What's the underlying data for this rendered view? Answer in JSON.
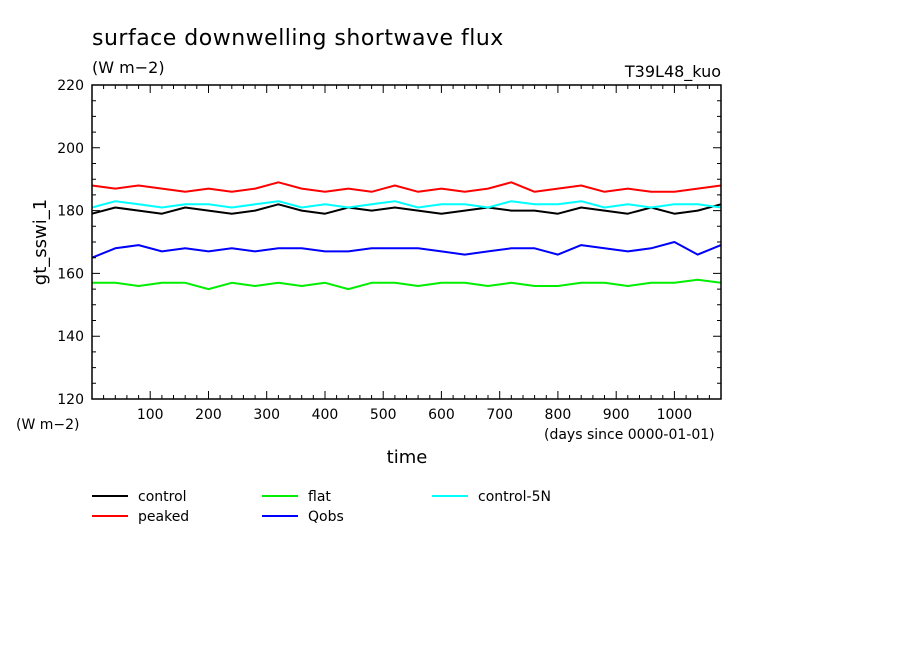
{
  "chart_data": {
    "type": "line",
    "title": "surface downwelling shortwave flux",
    "units_label": "(W m−2)",
    "experiment_label": "T39L48_kuo",
    "ylabel": "gt_sswi_1",
    "y_units": "(W m−2)",
    "xlabel": "time",
    "x_units": "(days since 0000-01-01)",
    "xlim": [
      0,
      1080
    ],
    "ylim": [
      120,
      220
    ],
    "x_ticks": [
      100,
      200,
      300,
      400,
      500,
      600,
      700,
      800,
      900,
      1000
    ],
    "y_ticks": [
      120,
      140,
      160,
      180,
      200,
      220
    ],
    "grid": false,
    "legend_position": "bottom",
    "series": [
      {
        "name": "control",
        "color": "#000000",
        "x": [
          0,
          40,
          80,
          120,
          160,
          200,
          240,
          280,
          320,
          360,
          400,
          440,
          480,
          520,
          560,
          600,
          640,
          680,
          720,
          760,
          800,
          840,
          880,
          920,
          960,
          1000,
          1040,
          1080
        ],
        "values": [
          179,
          181,
          180,
          179,
          181,
          180,
          179,
          180,
          182,
          180,
          179,
          181,
          180,
          181,
          180,
          179,
          180,
          181,
          180,
          180,
          179,
          181,
          180,
          179,
          181,
          179,
          180,
          182
        ]
      },
      {
        "name": "peaked",
        "color": "#ff0000",
        "x": [
          0,
          40,
          80,
          120,
          160,
          200,
          240,
          280,
          320,
          360,
          400,
          440,
          480,
          520,
          560,
          600,
          640,
          680,
          720,
          760,
          800,
          840,
          880,
          920,
          960,
          1000,
          1040,
          1080
        ],
        "values": [
          188,
          187,
          188,
          187,
          186,
          187,
          186,
          187,
          189,
          187,
          186,
          187,
          186,
          188,
          186,
          187,
          186,
          187,
          189,
          186,
          187,
          188,
          186,
          187,
          186,
          186,
          187,
          188
        ]
      },
      {
        "name": "flat",
        "color": "#00ee00",
        "x": [
          0,
          40,
          80,
          120,
          160,
          200,
          240,
          280,
          320,
          360,
          400,
          440,
          480,
          520,
          560,
          600,
          640,
          680,
          720,
          760,
          800,
          840,
          880,
          920,
          960,
          1000,
          1040,
          1080
        ],
        "values": [
          157,
          157,
          156,
          157,
          157,
          155,
          157,
          156,
          157,
          156,
          157,
          155,
          157,
          157,
          156,
          157,
          157,
          156,
          157,
          156,
          156,
          157,
          157,
          156,
          157,
          157,
          158,
          157
        ]
      },
      {
        "name": "Qobs",
        "color": "#0000ff",
        "x": [
          0,
          40,
          80,
          120,
          160,
          200,
          240,
          280,
          320,
          360,
          400,
          440,
          480,
          520,
          560,
          600,
          640,
          680,
          720,
          760,
          800,
          840,
          880,
          920,
          960,
          1000,
          1040,
          1080
        ],
        "values": [
          165,
          168,
          169,
          167,
          168,
          167,
          168,
          167,
          168,
          168,
          167,
          167,
          168,
          168,
          168,
          167,
          166,
          167,
          168,
          168,
          166,
          169,
          168,
          167,
          168,
          170,
          166,
          169
        ]
      },
      {
        "name": "control-5N",
        "color": "#00ffff",
        "x": [
          0,
          40,
          80,
          120,
          160,
          200,
          240,
          280,
          320,
          360,
          400,
          440,
          480,
          520,
          560,
          600,
          640,
          680,
          720,
          760,
          800,
          840,
          880,
          920,
          960,
          1000,
          1040,
          1080
        ],
        "values": [
          181,
          183,
          182,
          181,
          182,
          182,
          181,
          182,
          183,
          181,
          182,
          181,
          182,
          183,
          181,
          182,
          182,
          181,
          183,
          182,
          182,
          183,
          181,
          182,
          181,
          182,
          182,
          181
        ]
      }
    ]
  }
}
